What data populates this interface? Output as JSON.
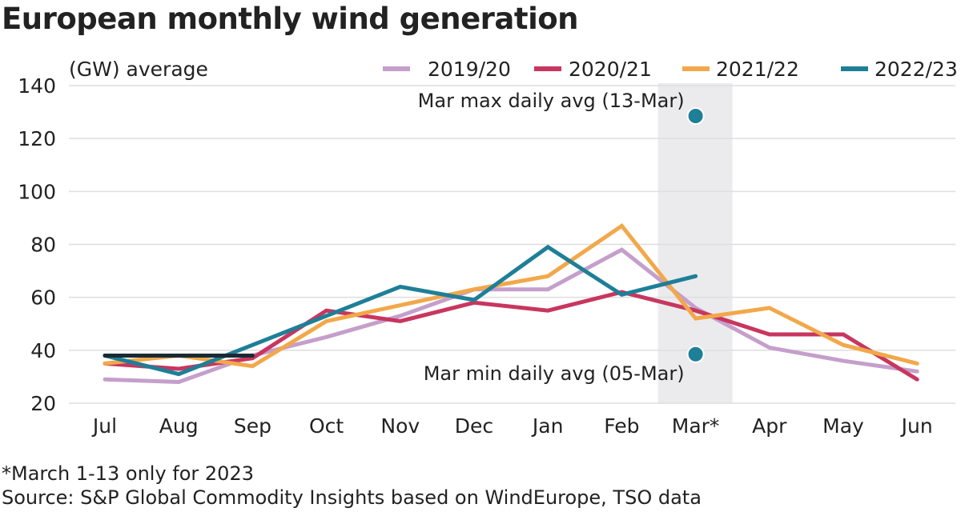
{
  "chart_data": {
    "type": "line",
    "title": "European monthly wind generation",
    "ylabel": "(GW) average",
    "ylim": [
      20,
      140
    ],
    "yticks": [
      20,
      40,
      60,
      80,
      100,
      120,
      140
    ],
    "grid": true,
    "legend_position": "top",
    "categories": [
      "Jul",
      "Aug",
      "Sep",
      "Oct",
      "Nov",
      "Dec",
      "Jan",
      "Feb",
      "Mar*",
      "Apr",
      "May",
      "Jun"
    ],
    "highlight_category": "Mar*",
    "series": [
      {
        "name": "2019/20",
        "color": "#c59fcb",
        "values": [
          29,
          28,
          38,
          45,
          53,
          63,
          63,
          78,
          56,
          41,
          36,
          32
        ]
      },
      {
        "name": "2020/21",
        "color": "#c8365f",
        "values": [
          35,
          33,
          37,
          55,
          51,
          58,
          55,
          62,
          55,
          46,
          46,
          29
        ]
      },
      {
        "name": "2021/22",
        "color": "#f2a84a",
        "values": [
          35,
          38,
          34,
          51,
          57,
          63,
          68,
          87,
          52,
          56,
          42,
          35
        ]
      },
      {
        "name": "2022/23",
        "color": "#1e7f97",
        "values": [
          38,
          31,
          42,
          53,
          64,
          59,
          79,
          61,
          68,
          null,
          null,
          null
        ]
      },
      {
        "color": "#1a2a33",
        "values": [
          38,
          38,
          38,
          null,
          null,
          null,
          null,
          null,
          null,
          null,
          null,
          null
        ]
      }
    ],
    "points": [
      {
        "label": "Mar max daily avg (13-Mar)",
        "category": "Mar*",
        "value": 128.5,
        "color": "#1e7f97"
      },
      {
        "label": "Mar min daily avg (05-Mar)",
        "category": "Mar*",
        "value": 38.5,
        "color": "#1e7f97"
      }
    ]
  },
  "footnote": "*March 1-13 only for 2023",
  "source": "Source: S&P Global Commodity Insights based on WindEurope, TSO data"
}
